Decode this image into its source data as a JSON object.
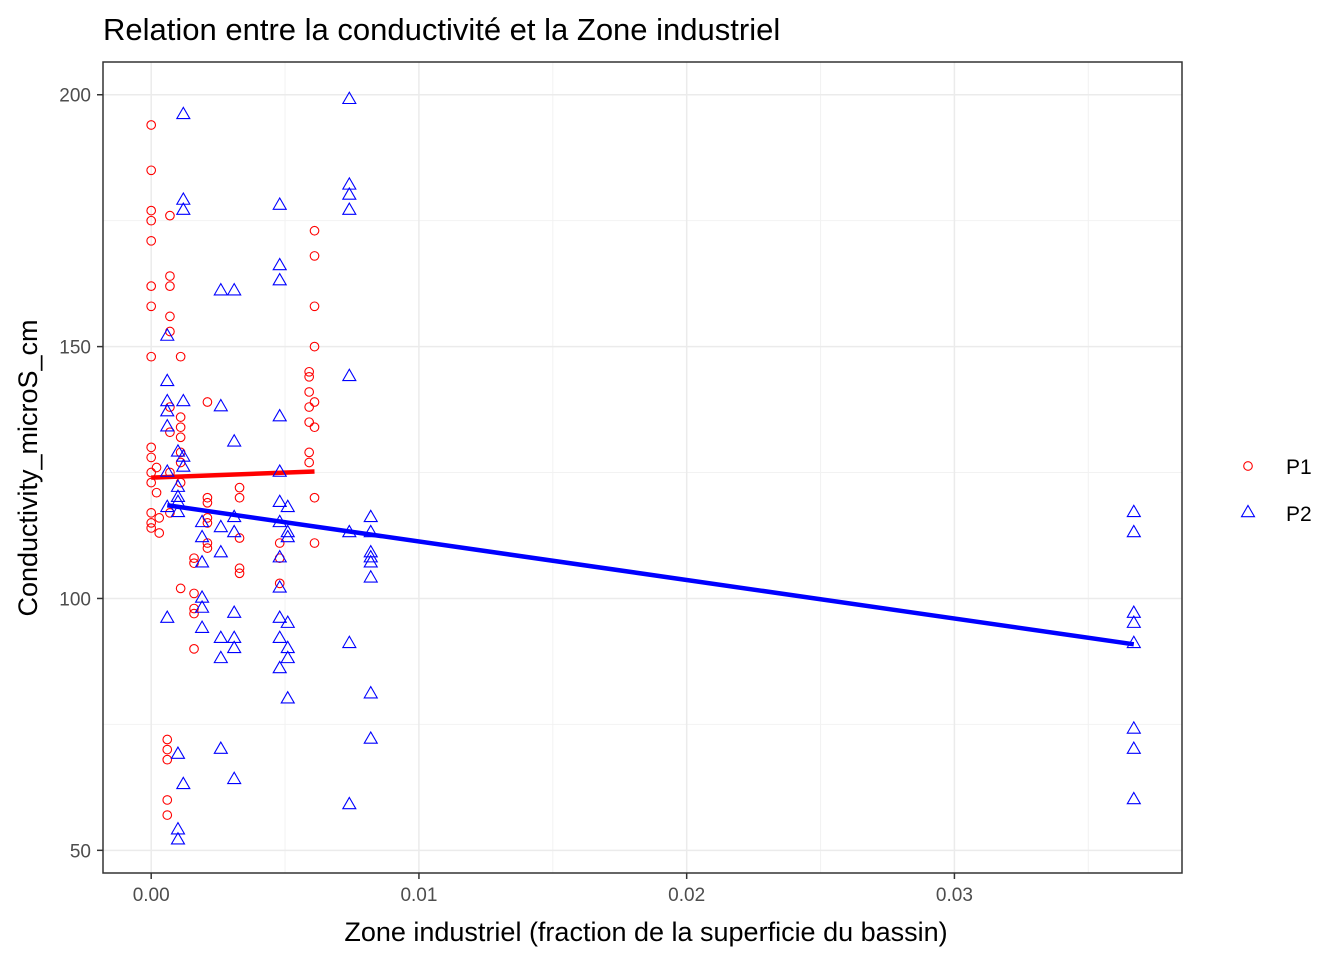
{
  "chart_data": {
    "type": "scatter",
    "title": "Relation entre la conductivité et la Zone industriel",
    "xlabel": "Zone industriel (fraction de la superficie du bassin)",
    "ylabel": "Conductivity_microS_cm",
    "xlim": [
      -0.0018,
      0.0385
    ],
    "ylim": [
      45.5,
      206.5
    ],
    "x_ticks": [
      0,
      0.01,
      0.02,
      0.03
    ],
    "x_tick_labels": [
      "0.00",
      "0.01",
      "0.02",
      "0.03"
    ],
    "y_ticks": [
      50,
      100,
      150,
      200
    ],
    "y_tick_labels": [
      "50",
      "100",
      "150",
      "200"
    ],
    "grid": true,
    "legend_position": "right",
    "series": [
      {
        "name": "P1",
        "marker": "circle-open",
        "color": "#ff0000",
        "points": [
          [
            0,
            194
          ],
          [
            0,
            185
          ],
          [
            0,
            177
          ],
          [
            0,
            175
          ],
          [
            0,
            171
          ],
          [
            0,
            162
          ],
          [
            0,
            158
          ],
          [
            0,
            148
          ],
          [
            0,
            130
          ],
          [
            0,
            128
          ],
          [
            0,
            125
          ],
          [
            0,
            123
          ],
          [
            0,
            117
          ],
          [
            0,
            115
          ],
          [
            0,
            114
          ],
          [
            0.0002,
            126
          ],
          [
            0.0002,
            121
          ],
          [
            0.0003,
            116
          ],
          [
            0.0003,
            113
          ],
          [
            0.0006,
            72
          ],
          [
            0.0006,
            70
          ],
          [
            0.0006,
            68
          ],
          [
            0.0006,
            60
          ],
          [
            0.0006,
            57
          ],
          [
            0.0007,
            176
          ],
          [
            0.0007,
            164
          ],
          [
            0.0007,
            162
          ],
          [
            0.0007,
            156
          ],
          [
            0.0007,
            153
          ],
          [
            0.0007,
            138
          ],
          [
            0.0007,
            133
          ],
          [
            0.0007,
            125
          ],
          [
            0.0007,
            117
          ],
          [
            0.0011,
            148
          ],
          [
            0.0011,
            136
          ],
          [
            0.0011,
            134
          ],
          [
            0.0011,
            132
          ],
          [
            0.0011,
            129
          ],
          [
            0.0011,
            127
          ],
          [
            0.0011,
            123
          ],
          [
            0.0011,
            102
          ],
          [
            0.0016,
            108
          ],
          [
            0.0016,
            107
          ],
          [
            0.0016,
            101
          ],
          [
            0.0016,
            98
          ],
          [
            0.0016,
            97
          ],
          [
            0.0016,
            90
          ],
          [
            0.0021,
            139
          ],
          [
            0.0021,
            120
          ],
          [
            0.0021,
            119
          ],
          [
            0.0021,
            116
          ],
          [
            0.0021,
            115
          ],
          [
            0.0021,
            111
          ],
          [
            0.0021,
            110
          ],
          [
            0.0033,
            122
          ],
          [
            0.0033,
            120
          ],
          [
            0.0033,
            112
          ],
          [
            0.0033,
            106
          ],
          [
            0.0033,
            105
          ],
          [
            0.0048,
            111
          ],
          [
            0.0048,
            108
          ],
          [
            0.0048,
            103
          ],
          [
            0.0059,
            145
          ],
          [
            0.0059,
            144
          ],
          [
            0.0059,
            141
          ],
          [
            0.0059,
            138
          ],
          [
            0.0059,
            135
          ],
          [
            0.0059,
            129
          ],
          [
            0.0059,
            127
          ],
          [
            0.0061,
            173
          ],
          [
            0.0061,
            168
          ],
          [
            0.0061,
            158
          ],
          [
            0.0061,
            150
          ],
          [
            0.0061,
            139
          ],
          [
            0.0061,
            134
          ],
          [
            0.0061,
            120
          ],
          [
            0.0061,
            111
          ]
        ],
        "trend": [
          [
            0,
            124
          ],
          [
            0.0061,
            125.2
          ]
        ]
      },
      {
        "name": "P2",
        "marker": "triangle-open",
        "color": "#0000ff",
        "points": [
          [
            0.0006,
            96
          ],
          [
            0.0006,
            118
          ],
          [
            0.0006,
            152
          ],
          [
            0.0006,
            143
          ],
          [
            0.0006,
            139
          ],
          [
            0.0006,
            137
          ],
          [
            0.0006,
            134
          ],
          [
            0.0006,
            125
          ],
          [
            0.001,
            129
          ],
          [
            0.001,
            122
          ],
          [
            0.001,
            120
          ],
          [
            0.001,
            119
          ],
          [
            0.001,
            117
          ],
          [
            0.001,
            69
          ],
          [
            0.001,
            54
          ],
          [
            0.001,
            52
          ],
          [
            0.0012,
            196
          ],
          [
            0.0012,
            179
          ],
          [
            0.0012,
            177
          ],
          [
            0.0012,
            139
          ],
          [
            0.0012,
            128
          ],
          [
            0.0012,
            126
          ],
          [
            0.0012,
            63
          ],
          [
            0.0019,
            115
          ],
          [
            0.0019,
            112
          ],
          [
            0.0019,
            107
          ],
          [
            0.0019,
            100
          ],
          [
            0.0019,
            98
          ],
          [
            0.0019,
            94
          ],
          [
            0.0026,
            161
          ],
          [
            0.0026,
            138
          ],
          [
            0.0026,
            114
          ],
          [
            0.0026,
            109
          ],
          [
            0.0026,
            92
          ],
          [
            0.0026,
            88
          ],
          [
            0.0026,
            70
          ],
          [
            0.0031,
            161
          ],
          [
            0.0031,
            131
          ],
          [
            0.0031,
            116
          ],
          [
            0.0031,
            113
          ],
          [
            0.0031,
            97
          ],
          [
            0.0031,
            92
          ],
          [
            0.0031,
            90
          ],
          [
            0.0031,
            64
          ],
          [
            0.0048,
            178
          ],
          [
            0.0048,
            166
          ],
          [
            0.0048,
            163
          ],
          [
            0.0048,
            136
          ],
          [
            0.0048,
            125
          ],
          [
            0.0048,
            119
          ],
          [
            0.0048,
            115
          ],
          [
            0.0048,
            108
          ],
          [
            0.0048,
            102
          ],
          [
            0.0048,
            96
          ],
          [
            0.0048,
            92
          ],
          [
            0.0048,
            86
          ],
          [
            0.0051,
            118
          ],
          [
            0.0051,
            113
          ],
          [
            0.0051,
            112
          ],
          [
            0.0051,
            95
          ],
          [
            0.0051,
            90
          ],
          [
            0.0051,
            88
          ],
          [
            0.0051,
            80
          ],
          [
            0.0074,
            199
          ],
          [
            0.0074,
            182
          ],
          [
            0.0074,
            180
          ],
          [
            0.0074,
            177
          ],
          [
            0.0074,
            144
          ],
          [
            0.0074,
            113
          ],
          [
            0.0074,
            91
          ],
          [
            0.0074,
            59
          ],
          [
            0.0082,
            116
          ],
          [
            0.0082,
            113
          ],
          [
            0.0082,
            109
          ],
          [
            0.0082,
            108
          ],
          [
            0.0082,
            107
          ],
          [
            0.0082,
            104
          ],
          [
            0.0082,
            81
          ],
          [
            0.0082,
            72
          ],
          [
            0.0367,
            117
          ],
          [
            0.0367,
            113
          ],
          [
            0.0367,
            97
          ],
          [
            0.0367,
            95
          ],
          [
            0.0367,
            91
          ],
          [
            0.0367,
            74
          ],
          [
            0.0367,
            70
          ],
          [
            0.0367,
            60
          ]
        ],
        "trend": [
          [
            0.0006,
            118.5
          ],
          [
            0.0367,
            90.9
          ]
        ]
      }
    ]
  }
}
